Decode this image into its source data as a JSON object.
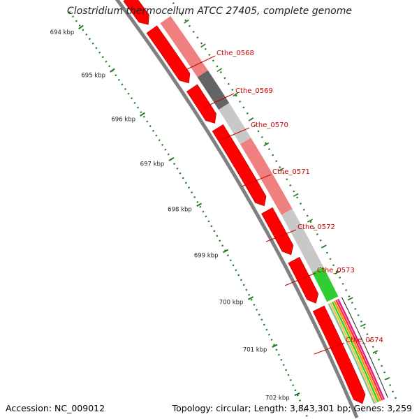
{
  "title": "Clostridium thermocellum ATCC 27405, complete genome",
  "accession": "Accession: NC_009012",
  "stats": "Topology: circular; Length: 3,843,301 bp; Genes: 3,259",
  "axis_ticks": [
    "694 kbp",
    "695 kbp",
    "696 kbp",
    "697 kbp",
    "698 kbp",
    "699 kbp",
    "700 kbp",
    "701 kbp",
    "702 kbp"
  ],
  "genes": [
    {
      "label": "Cthe_0568",
      "color": "#F08080"
    },
    {
      "label": "Cthe_0569",
      "color": "#646464"
    },
    {
      "label": "Cthe_0570",
      "color": "#C8C8C8"
    },
    {
      "label": "Cthe_0571",
      "color": "#F08080"
    },
    {
      "label": "Cthe_0572",
      "color": "#C8C8C8"
    },
    {
      "label": "Cthe_0573",
      "color": "#32CD32"
    },
    {
      "label": "Cthe_0574",
      "color": "#FF8C00"
    }
  ],
  "colors": {
    "cds": "#FF0000",
    "backbone": "#808080",
    "label_text": "#CC0000",
    "tick": "#1E7B1E",
    "magenta": "#E8198C"
  }
}
